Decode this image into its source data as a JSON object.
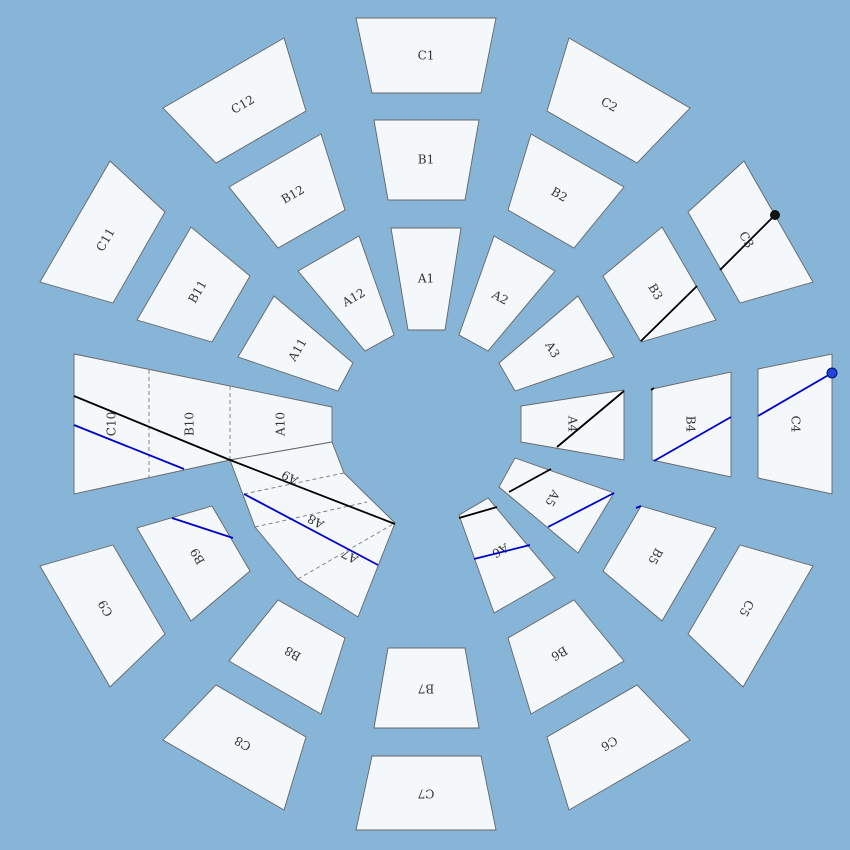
{
  "colors": {
    "background": "#87b5d8",
    "tile": "#f4f8fb",
    "outline": "#666666",
    "line_black": "#000000",
    "line_blue": "#0000cc",
    "endpoint_black": "#111111",
    "endpoint_blue": "#2244dd"
  },
  "rings": {
    "A": [
      "A1",
      "A2",
      "A3",
      "A4",
      "A5",
      "A6",
      "A7",
      "A8",
      "A9",
      "A10",
      "A11",
      "A12"
    ],
    "B": [
      "B1",
      "B2",
      "B3",
      "B4",
      "B5",
      "B6",
      "B7",
      "B8",
      "B9",
      "B10",
      "B11",
      "B12"
    ],
    "C": [
      "C1",
      "C2",
      "C3",
      "C4",
      "C5",
      "C6",
      "C7",
      "C8",
      "C9",
      "C10",
      "C11",
      "C12"
    ]
  },
  "merged_groups": [
    [
      "C10",
      "B10",
      "A10"
    ],
    [
      "A9",
      "A8",
      "A7"
    ]
  ],
  "lines": [
    {
      "name": "black-line",
      "color": "black",
      "endpoint": "C3"
    },
    {
      "name": "blue-line",
      "color": "blue",
      "endpoint": "C4"
    }
  ]
}
